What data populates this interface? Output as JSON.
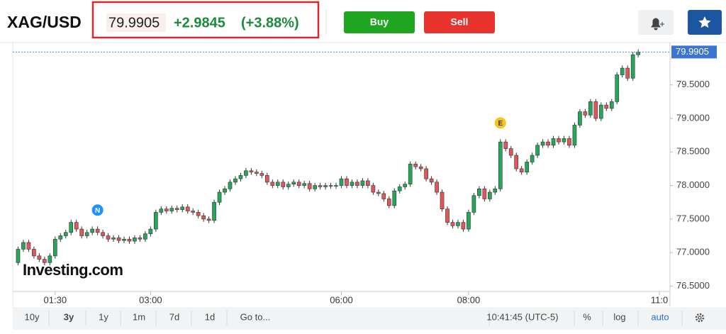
{
  "header": {
    "symbol": "XAG/USD",
    "price": "79.9905",
    "change": "+2.9845",
    "change_pct": "(+3.88%)",
    "buy": "Buy",
    "sell": "Sell"
  },
  "chart_data": {
    "type": "candlestick",
    "up_color": "#26a65b",
    "down_color": "#e0575b",
    "watermark": "Investing.com",
    "open": [
      76.85,
      77.05,
      77.15,
      77.05,
      76.95,
      76.9,
      76.85,
      76.95,
      77.2,
      77.25,
      77.3,
      77.45,
      77.35,
      77.25,
      77.3,
      77.35,
      77.3,
      77.25,
      77.2,
      77.22,
      77.18,
      77.2,
      77.17,
      77.22,
      77.2,
      77.28,
      77.35,
      77.6,
      77.65,
      77.62,
      77.66,
      77.64,
      77.68,
      77.62,
      77.6,
      77.55,
      77.5,
      77.48,
      77.75,
      77.9,
      77.95,
      78.05,
      78.1,
      78.15,
      78.22,
      78.2,
      78.18,
      78.15,
      78.05,
      78.0,
      78.05,
      77.98,
      78.02,
      78.05,
      78.0,
      78.03,
      77.95,
      78.0,
      77.98,
      78.0,
      77.99,
      78.0,
      78.1,
      78.0,
      78.05,
      78.0,
      78.07,
      78.0,
      77.9,
      77.88,
      77.8,
      77.7,
      77.92,
      77.98,
      78.02,
      78.32,
      78.28,
      78.25,
      78.1,
      78.05,
      77.9,
      77.65,
      77.45,
      77.4,
      77.45,
      77.35,
      77.6,
      77.85,
      77.95,
      77.8,
      77.9,
      77.95,
      78.65,
      78.55,
      78.45,
      78.25,
      78.2,
      78.35,
      78.45,
      78.6,
      78.65,
      78.6,
      78.7,
      78.65,
      78.7,
      78.6,
      78.9,
      79.1,
      79.05,
      79.25,
      79.0,
      79.2,
      79.15,
      79.25,
      79.65,
      79.75,
      79.6,
      79.95
    ],
    "high": [
      77.09,
      77.19,
      77.19,
      77.09,
      76.99,
      76.94,
      76.99,
      77.24,
      77.29,
      77.34,
      77.49,
      77.49,
      77.39,
      77.34,
      77.39,
      77.39,
      77.34,
      77.29,
      77.26,
      77.26,
      77.24,
      77.24,
      77.26,
      77.26,
      77.32,
      77.39,
      77.64,
      77.69,
      77.69,
      77.7,
      77.7,
      77.72,
      77.72,
      77.66,
      77.64,
      77.59,
      77.54,
      77.79,
      77.94,
      77.99,
      78.09,
      78.14,
      78.19,
      78.26,
      78.26,
      78.24,
      78.22,
      78.19,
      78.09,
      78.09,
      78.09,
      78.06,
      78.09,
      78.09,
      78.07,
      78.07,
      78.04,
      78.04,
      78.04,
      78.04,
      78.04,
      78.14,
      78.14,
      78.09,
      78.09,
      78.11,
      78.11,
      78.04,
      77.94,
      77.92,
      77.84,
      77.96,
      78.02,
      78.06,
      78.36,
      78.36,
      78.32,
      78.29,
      78.14,
      78.09,
      77.94,
      77.69,
      77.49,
      77.49,
      77.49,
      77.64,
      77.89,
      77.99,
      77.99,
      77.94,
      77.99,
      78.69,
      78.69,
      78.59,
      78.49,
      78.29,
      78.39,
      78.49,
      78.64,
      78.69,
      78.69,
      78.74,
      78.74,
      78.74,
      78.74,
      78.94,
      79.14,
      79.14,
      79.29,
      79.29,
      79.24,
      79.24,
      79.29,
      79.69,
      79.79,
      79.79,
      79.99,
      80.03
    ],
    "low": [
      76.81,
      77.01,
      77.01,
      76.91,
      76.86,
      76.81,
      76.81,
      76.91,
      77.16,
      77.21,
      77.26,
      77.31,
      77.21,
      77.21,
      77.26,
      77.26,
      77.21,
      77.16,
      77.16,
      77.14,
      77.14,
      77.13,
      77.13,
      77.16,
      77.16,
      77.24,
      77.31,
      77.56,
      77.58,
      77.58,
      77.6,
      77.6,
      77.58,
      77.56,
      77.51,
      77.46,
      77.44,
      77.44,
      77.71,
      77.86,
      77.91,
      78.01,
      78.06,
      78.11,
      78.16,
      78.14,
      78.11,
      78.01,
      77.96,
      77.96,
      77.94,
      77.94,
      77.98,
      77.96,
      77.96,
      77.91,
      77.91,
      77.94,
      77.94,
      77.95,
      77.95,
      77.96,
      77.96,
      77.96,
      77.96,
      77.96,
      77.96,
      77.86,
      77.84,
      77.76,
      77.66,
      77.66,
      77.88,
      77.94,
      77.98,
      78.24,
      78.21,
      78.06,
      78.01,
      77.86,
      77.61,
      77.41,
      77.36,
      77.36,
      77.31,
      77.31,
      77.56,
      77.81,
      77.76,
      77.76,
      77.86,
      77.91,
      78.51,
      78.41,
      78.21,
      78.16,
      78.16,
      78.31,
      78.41,
      78.56,
      78.56,
      78.56,
      78.61,
      78.61,
      78.56,
      78.56,
      78.86,
      79.01,
      79.01,
      78.96,
      78.96,
      79.11,
      79.11,
      79.21,
      79.61,
      79.56,
      79.56,
      79.91
    ],
    "close": [
      77.05,
      77.15,
      77.05,
      76.95,
      76.9,
      76.85,
      76.95,
      77.2,
      77.25,
      77.3,
      77.45,
      77.35,
      77.25,
      77.3,
      77.35,
      77.3,
      77.25,
      77.2,
      77.22,
      77.18,
      77.2,
      77.17,
      77.22,
      77.2,
      77.28,
      77.35,
      77.6,
      77.65,
      77.62,
      77.66,
      77.64,
      77.68,
      77.62,
      77.6,
      77.55,
      77.5,
      77.48,
      77.75,
      77.9,
      77.95,
      78.05,
      78.1,
      78.15,
      78.22,
      78.2,
      78.18,
      78.15,
      78.05,
      78.0,
      78.05,
      77.98,
      78.02,
      78.05,
      78.0,
      78.03,
      77.95,
      78.0,
      77.98,
      78.0,
      77.99,
      78.0,
      78.1,
      78.0,
      78.05,
      78.0,
      78.07,
      78.0,
      77.9,
      77.88,
      77.8,
      77.7,
      77.92,
      77.98,
      78.02,
      78.32,
      78.28,
      78.25,
      78.1,
      78.05,
      77.9,
      77.65,
      77.45,
      77.4,
      77.45,
      77.35,
      77.6,
      77.85,
      77.95,
      77.8,
      77.9,
      77.95,
      78.65,
      78.55,
      78.45,
      78.25,
      78.2,
      78.35,
      78.45,
      78.6,
      78.65,
      78.6,
      78.7,
      78.65,
      78.7,
      78.6,
      78.9,
      79.1,
      79.05,
      79.25,
      79.0,
      79.2,
      79.15,
      79.25,
      79.65,
      79.75,
      79.6,
      79.95,
      79.9905
    ],
    "events": [
      {
        "label": "N",
        "index": 15,
        "color": "#1e90ff"
      },
      {
        "label": "E",
        "index": 91,
        "color": "#f5c518"
      }
    ],
    "xlim": [
      -1,
      123
    ],
    "xticks": [
      {
        "value": 7,
        "label": "01:30"
      },
      {
        "value": 25,
        "label": "03:00"
      },
      {
        "value": 61,
        "label": "06:00"
      },
      {
        "value": 85,
        "label": "08:00"
      },
      {
        "value": 121,
        "label": "11:0"
      }
    ],
    "ylim": [
      76.42,
      80.1
    ],
    "yticks": [
      {
        "value": 76.5,
        "label": "76.5000"
      },
      {
        "value": 77,
        "label": "77.0000"
      },
      {
        "value": 77.5,
        "label": "77.5000"
      },
      {
        "value": 78,
        "label": "78.0000"
      },
      {
        "value": 78.5,
        "label": "78.5000"
      },
      {
        "value": 79,
        "label": "79.0000"
      },
      {
        "value": 79.5,
        "label": "79.5000"
      }
    ]
  },
  "toolbar": {
    "ranges": [
      "10y",
      "3y",
      "1y",
      "1m",
      "7d",
      "1d"
    ],
    "goto": "Go to...",
    "time": "10:41:45 (UTC-5)",
    "percent": "%",
    "log": "log",
    "auto": "auto"
  }
}
